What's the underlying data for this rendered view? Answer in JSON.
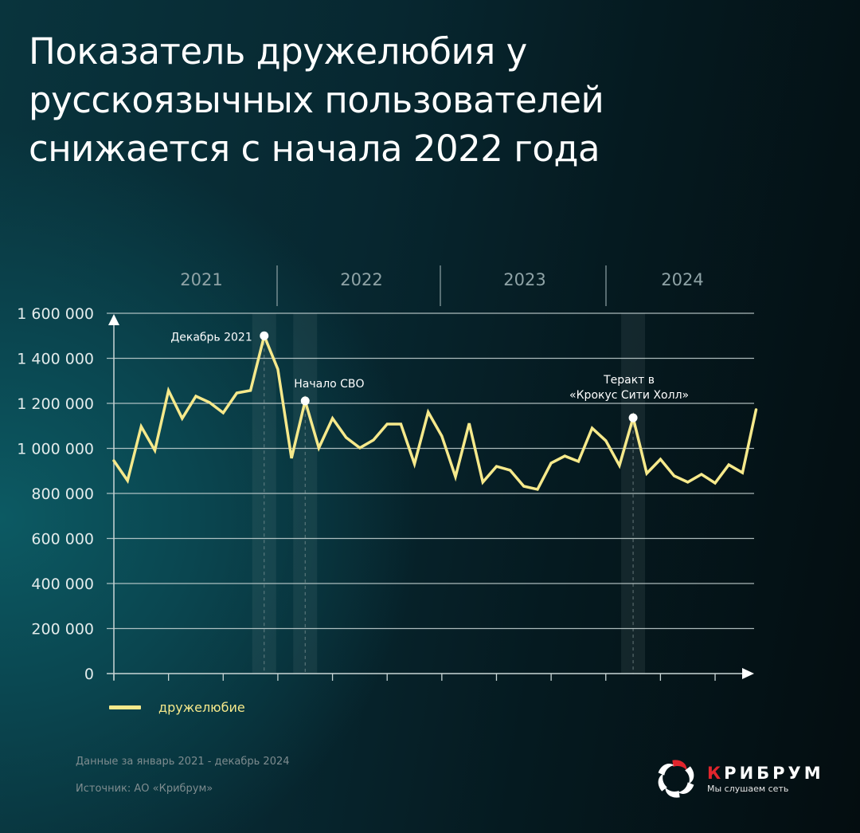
{
  "title": {
    "lines": [
      "Показатель дружелюбия у",
      "русскоязычных пользователей",
      "снижается с начала 2022 года"
    ]
  },
  "colors": {
    "line": "#f6e98b",
    "grid": "#c9d6d6",
    "axis_text": "#e3ebeb",
    "year_text": "#8fa3a6",
    "highlight_band": "rgba(120,150,150,0.13)",
    "marker": "#ffffff",
    "brand_red": "#e1252d"
  },
  "legend": {
    "label": "дружелюбие"
  },
  "footnotes": {
    "period": "Данные за январь 2021 - декабрь 2024",
    "source": "Источник: АО «Крибрум»"
  },
  "logo": {
    "name_first": "К",
    "name_rest": "РИБРУМ",
    "tagline": "Мы слушаем сеть",
    "icon": "pinwheel-logo-icon"
  },
  "chart_data": {
    "type": "line",
    "title": "Показатель дружелюбия у русскоязычных пользователей снижается с начала 2022 года",
    "xlabel": "",
    "ylabel": "",
    "ylim": [
      0,
      1600000
    ],
    "yticks": [
      0,
      200000,
      400000,
      600000,
      800000,
      1000000,
      1200000,
      1400000,
      1600000
    ],
    "ytick_labels": [
      "0",
      "200 000",
      "400 000",
      "600 000",
      "800 000",
      "1 000 000",
      "1 200 000",
      "1 400 000",
      "1 600 000"
    ],
    "grid": true,
    "legend_position": "bottom-left",
    "years": [
      "2021",
      "2022",
      "2023",
      "2024"
    ],
    "x": [
      "2021-01",
      "2021-02",
      "2021-03",
      "2021-04",
      "2021-05",
      "2021-06",
      "2021-07",
      "2021-08",
      "2021-09",
      "2021-10",
      "2021-11",
      "2021-12",
      "2022-01",
      "2022-02",
      "2022-03",
      "2022-04",
      "2022-05",
      "2022-06",
      "2022-07",
      "2022-08",
      "2022-09",
      "2022-10",
      "2022-11",
      "2022-12",
      "2023-01",
      "2023-02",
      "2023-03",
      "2023-04",
      "2023-05",
      "2023-06",
      "2023-07",
      "2023-08",
      "2023-09",
      "2023-10",
      "2023-11",
      "2023-12",
      "2024-01",
      "2024-02",
      "2024-03",
      "2024-04",
      "2024-05",
      "2024-06",
      "2024-07",
      "2024-08",
      "2024-09",
      "2024-10",
      "2024-11",
      "2024-12"
    ],
    "series": [
      {
        "name": "дружелюбие",
        "values": [
          945000,
          857000,
          1097000,
          991000,
          1257000,
          1133000,
          1232000,
          1204000,
          1158000,
          1246000,
          1257000,
          1500000,
          1352000,
          956000,
          1211000,
          1002000,
          1133000,
          1048000,
          1002000,
          1037000,
          1108000,
          1108000,
          931000,
          1161000,
          1055000,
          874000,
          1111000,
          850000,
          920000,
          903000,
          832000,
          818000,
          935000,
          966000,
          942000,
          1090000,
          1034000,
          924000,
          1136000,
          889000,
          952000,
          878000,
          850000,
          885000,
          846000,
          927000,
          892000,
          1172000
        ]
      }
    ],
    "annotations": [
      {
        "label": "Декабрь 2021",
        "index": 11
      },
      {
        "label": "Начало СВО",
        "index": 14
      },
      {
        "label": "Теракт в «Крокус Сити Холл»",
        "lines": [
          "Теракт в",
          "«Крокус Сити Холл»"
        ],
        "index": 38
      }
    ]
  }
}
